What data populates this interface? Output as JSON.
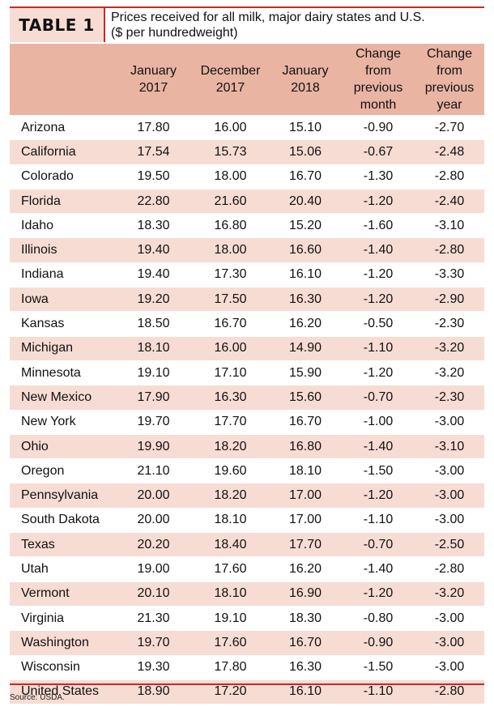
{
  "table_label": "TABLE 1",
  "caption": {
    "line1": "Prices received for all milk, major dairy states and U.S.",
    "line2": "($ per hundredweight)"
  },
  "columns": [
    {
      "lines": [
        ""
      ]
    },
    {
      "lines": [
        "January",
        "2017"
      ]
    },
    {
      "lines": [
        "December",
        "2017"
      ]
    },
    {
      "lines": [
        "January",
        "2018"
      ]
    },
    {
      "lines": [
        "Change",
        "from",
        "previous",
        "month"
      ]
    },
    {
      "lines": [
        "Change",
        "from",
        "previous",
        "year"
      ]
    }
  ],
  "rows": [
    [
      "Arizona",
      "17.80",
      "16.00",
      "15.10",
      "-0.90",
      "-2.70"
    ],
    [
      "California",
      "17.54",
      "15.73",
      "15.06",
      "-0.67",
      "-2.48"
    ],
    [
      "Colorado",
      "19.50",
      "18.00",
      "16.70",
      "-1.30",
      "-2.80"
    ],
    [
      "Florida",
      "22.80",
      "21.60",
      "20.40",
      "-1.20",
      "-2.40"
    ],
    [
      "Idaho",
      "18.30",
      "16.80",
      "15.20",
      "-1.60",
      "-3.10"
    ],
    [
      "Illinois",
      "19.40",
      "18.00",
      "16.60",
      "-1.40",
      "-2.80"
    ],
    [
      "Indiana",
      "19.40",
      "17.30",
      "16.10",
      "-1.20",
      "-3.30"
    ],
    [
      "Iowa",
      "19.20",
      "17.50",
      "16.30",
      "-1.20",
      "-2.90"
    ],
    [
      "Kansas",
      "18.50",
      "16.70",
      "16.20",
      "-0.50",
      "-2.30"
    ],
    [
      "Michigan",
      "18.10",
      "16.00",
      "14.90",
      "-1.10",
      "-3.20"
    ],
    [
      "Minnesota",
      "19.10",
      "17.10",
      "15.90",
      "-1.20",
      "-3.20"
    ],
    [
      "New Mexico",
      "17.90",
      "16.30",
      "15.60",
      "-0.70",
      "-2.30"
    ],
    [
      "New York",
      "19.70",
      "17.70",
      "16.70",
      "-1.00",
      "-3.00"
    ],
    [
      "Ohio",
      "19.90",
      "18.20",
      "16.80",
      "-1.40",
      "-3.10"
    ],
    [
      "Oregon",
      "21.10",
      "19.60",
      "18.10",
      "-1.50",
      "-3.00"
    ],
    [
      "Pennsylvania",
      "20.00",
      "18.20",
      "17.00",
      "-1.20",
      "-3.00"
    ],
    [
      "South Dakota",
      "20.00",
      "18.10",
      "17.00",
      "-1.10",
      "-3.00"
    ],
    [
      "Texas",
      "20.20",
      "18.40",
      "17.70",
      "-0.70",
      "-2.50"
    ],
    [
      "Utah",
      "19.00",
      "17.60",
      "16.20",
      "-1.40",
      "-2.80"
    ],
    [
      "Vermont",
      "20.10",
      "18.10",
      "16.90",
      "-1.20",
      "-3.20"
    ],
    [
      "Virginia",
      "21.30",
      "19.10",
      "18.30",
      "-0.80",
      "-3.00"
    ],
    [
      "Washington",
      "19.70",
      "17.60",
      "16.70",
      "-0.90",
      "-3.00"
    ],
    [
      "Wisconsin",
      "19.30",
      "17.80",
      "16.30",
      "-1.50",
      "-3.00"
    ],
    [
      "United States",
      "18.90",
      "17.20",
      "16.10",
      "-1.10",
      "-2.80"
    ]
  ],
  "source": "Source: USDA.",
  "colors": {
    "accent_rule": "#c42a2a",
    "header_fill": "#e9b4a2",
    "stripe_fill": "#f7dcd3"
  }
}
